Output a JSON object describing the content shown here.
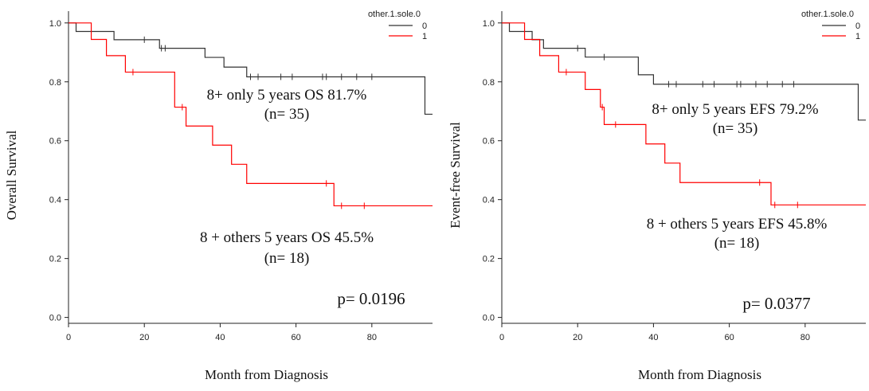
{
  "chart_data": [
    {
      "type": "line",
      "subtype": "kaplan-meier step",
      "ylabel": "Overall Survival",
      "xlabel": "Month from Diagnosis",
      "xlim": [
        0,
        96
      ],
      "ylim": [
        -0.02,
        1.04
      ],
      "x_ticks": [
        "0",
        "20",
        "40",
        "60",
        "80"
      ],
      "y_ticks": [
        "0.0",
        "0.2",
        "0.4",
        "0.6",
        "0.8",
        "1.0"
      ],
      "legend_title": "other.1.sole.0",
      "legend_position": "top-right",
      "series": [
        {
          "name": "0",
          "color": "#333333",
          "steps": [
            [
              0,
              1.0
            ],
            [
              2,
              0.971
            ],
            [
              12,
              0.943
            ],
            [
              24,
              0.914
            ],
            [
              36,
              0.883
            ],
            [
              41,
              0.85
            ],
            [
              47,
              0.817
            ],
            [
              94,
              0.69
            ]
          ],
          "censored": [
            [
              20,
              0.943
            ],
            [
              24.5,
              0.914
            ],
            [
              25.5,
              0.914
            ],
            [
              48,
              0.817
            ],
            [
              50,
              0.817
            ],
            [
              56,
              0.817
            ],
            [
              59,
              0.817
            ],
            [
              67,
              0.817
            ],
            [
              68,
              0.817
            ],
            [
              72,
              0.817
            ],
            [
              76,
              0.817
            ],
            [
              80,
              0.817
            ]
          ]
        },
        {
          "name": "1",
          "color": "#ff0000",
          "steps": [
            [
              0,
              1.0
            ],
            [
              6,
              0.944
            ],
            [
              10,
              0.889
            ],
            [
              15,
              0.833
            ],
            [
              28,
              0.714
            ],
            [
              31,
              0.65
            ],
            [
              38,
              0.585
            ],
            [
              43,
              0.52
            ],
            [
              47,
              0.455
            ],
            [
              70,
              0.379
            ]
          ],
          "censored": [
            [
              17,
              0.833
            ],
            [
              30,
              0.714
            ],
            [
              68,
              0.455
            ],
            [
              72,
              0.379
            ],
            [
              78,
              0.379
            ]
          ]
        }
      ],
      "annotations": [
        {
          "lines": [
            "8+ only 5 years OS 81.7%",
            "(n= 35)"
          ]
        },
        {
          "lines": [
            "8 + others 5 years OS 45.5%",
            "(n= 18)"
          ]
        },
        {
          "lines": [
            "p= 0.0196"
          ]
        }
      ]
    },
    {
      "type": "line",
      "subtype": "kaplan-meier step",
      "ylabel": "Event-free Survival",
      "xlabel": "Month from Diagnosis",
      "xlim": [
        0,
        96
      ],
      "ylim": [
        -0.02,
        1.04
      ],
      "x_ticks": [
        "0",
        "20",
        "40",
        "60",
        "80"
      ],
      "y_ticks": [
        "0.0",
        "0.2",
        "0.4",
        "0.6",
        "0.8",
        "1.0"
      ],
      "legend_title": "other.1.sole.0",
      "legend_position": "top-right",
      "series": [
        {
          "name": "0",
          "color": "#333333",
          "steps": [
            [
              0,
              1.0
            ],
            [
              2,
              0.971
            ],
            [
              8,
              0.943
            ],
            [
              11,
              0.914
            ],
            [
              22,
              0.884
            ],
            [
              36,
              0.824
            ],
            [
              40,
              0.792
            ],
            [
              94,
              0.67
            ]
          ],
          "censored": [
            [
              20,
              0.914
            ],
            [
              27,
              0.884
            ],
            [
              44,
              0.792
            ],
            [
              46,
              0.792
            ],
            [
              53,
              0.792
            ],
            [
              56,
              0.792
            ],
            [
              62,
              0.792
            ],
            [
              63,
              0.792
            ],
            [
              67,
              0.792
            ],
            [
              70,
              0.792
            ],
            [
              74,
              0.792
            ],
            [
              77,
              0.792
            ]
          ]
        },
        {
          "name": "1",
          "color": "#ff0000",
          "steps": [
            [
              0,
              1.0
            ],
            [
              6,
              0.944
            ],
            [
              10,
              0.889
            ],
            [
              15,
              0.833
            ],
            [
              22,
              0.774
            ],
            [
              26,
              0.714
            ],
            [
              27,
              0.655
            ],
            [
              38,
              0.589
            ],
            [
              43,
              0.524
            ],
            [
              47,
              0.458
            ],
            [
              71,
              0.382
            ]
          ],
          "censored": [
            [
              17,
              0.833
            ],
            [
              26.5,
              0.714
            ],
            [
              30,
              0.655
            ],
            [
              68,
              0.458
            ],
            [
              72,
              0.382
            ],
            [
              78,
              0.382
            ]
          ]
        }
      ],
      "annotations": [
        {
          "lines": [
            "8+ only 5 years EFS 79.2%",
            "(n= 35)"
          ]
        },
        {
          "lines": [
            "8 + others 5 years EFS 45.8%",
            "(n= 18)"
          ]
        },
        {
          "lines": [
            "p= 0.0377"
          ]
        }
      ]
    }
  ]
}
